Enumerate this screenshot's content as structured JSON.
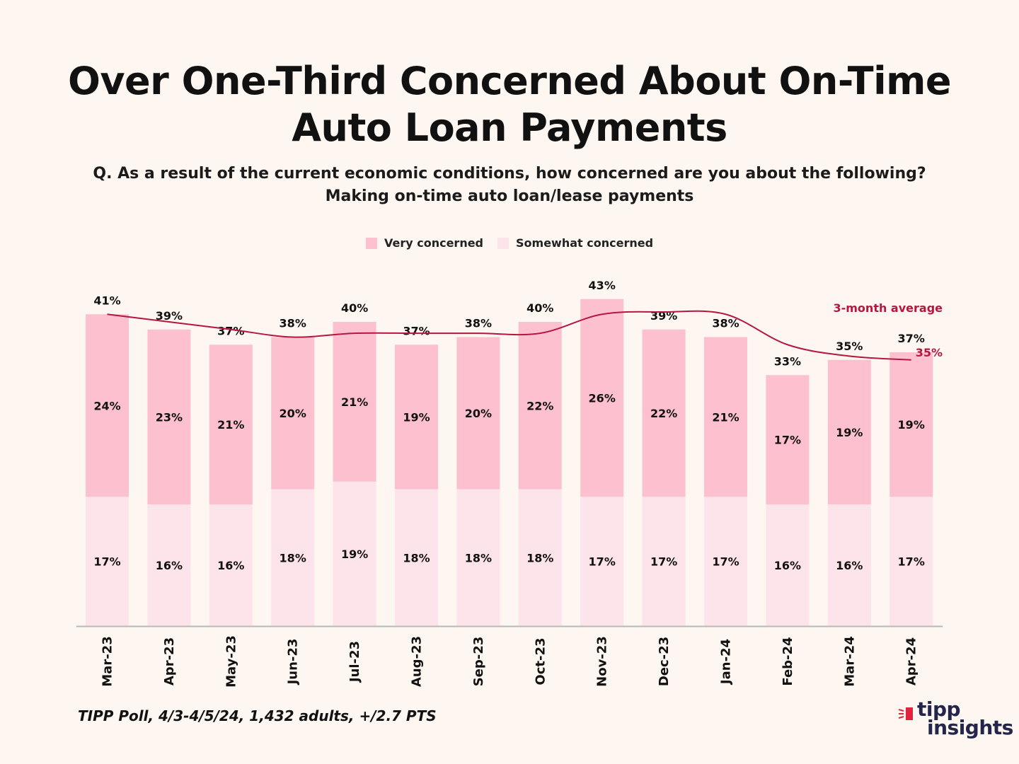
{
  "chart_data": {
    "type": "bar",
    "stacked": true,
    "title": "Over One-Third Concerned About On-Time Auto Loan Payments",
    "subtitle_line1": "Q. As a result of the current economic conditions, how concerned are you about the following?",
    "subtitle_line2": "Making on-time auto loan/lease payments",
    "categories": [
      "Mar-23",
      "Apr-23",
      "May-23",
      "Jun-23",
      "Jul-23",
      "Aug-23",
      "Sep-23",
      "Oct-23",
      "Nov-23",
      "Dec-23",
      "Jan-24",
      "Feb-24",
      "Mar-24",
      "Apr-24"
    ],
    "series": [
      {
        "name": "Somewhat concerned",
        "color": "#fde3ea",
        "values": [
          17,
          16,
          16,
          18,
          19,
          18,
          18,
          18,
          17,
          17,
          17,
          16,
          16,
          17
        ]
      },
      {
        "name": "Very concerned",
        "color": "#fdc0cf",
        "values": [
          24,
          23,
          21,
          20,
          21,
          19,
          20,
          22,
          26,
          22,
          21,
          17,
          19,
          19
        ]
      }
    ],
    "total_labels": [
      "41%",
      "39%",
      "37%",
      "38%",
      "40%",
      "37%",
      "38%",
      "40%",
      "43%",
      "39%",
      "38%",
      "33%",
      "35%",
      "37%"
    ],
    "line": {
      "name": "3-month average",
      "color": "#b5173e",
      "values": [
        41,
        40,
        39,
        38,
        38.5,
        38.5,
        38.5,
        38.5,
        41,
        41.3,
        41,
        37,
        35.5,
        35
      ],
      "end_label": "35%"
    },
    "ylim": [
      0,
      45
    ],
    "xlabel": "",
    "ylabel": "",
    "grid": false,
    "legend": "top-center"
  },
  "legend": {
    "very_label": "Very concerned",
    "somewhat_label": "Somewhat concerned"
  },
  "footer": {
    "source": "TIPP Poll, 4/3-4/5/24, 1,432 adults, +/2.7 PTS",
    "logo_word1": "tipp",
    "logo_word2": "insights"
  },
  "colors": {
    "very": "#fdc0cf",
    "somewhat": "#fde3ea",
    "line": "#b5173e",
    "axis": "#b8b8b8",
    "logo": "#23254a",
    "logo_accent": "#e0233f"
  }
}
